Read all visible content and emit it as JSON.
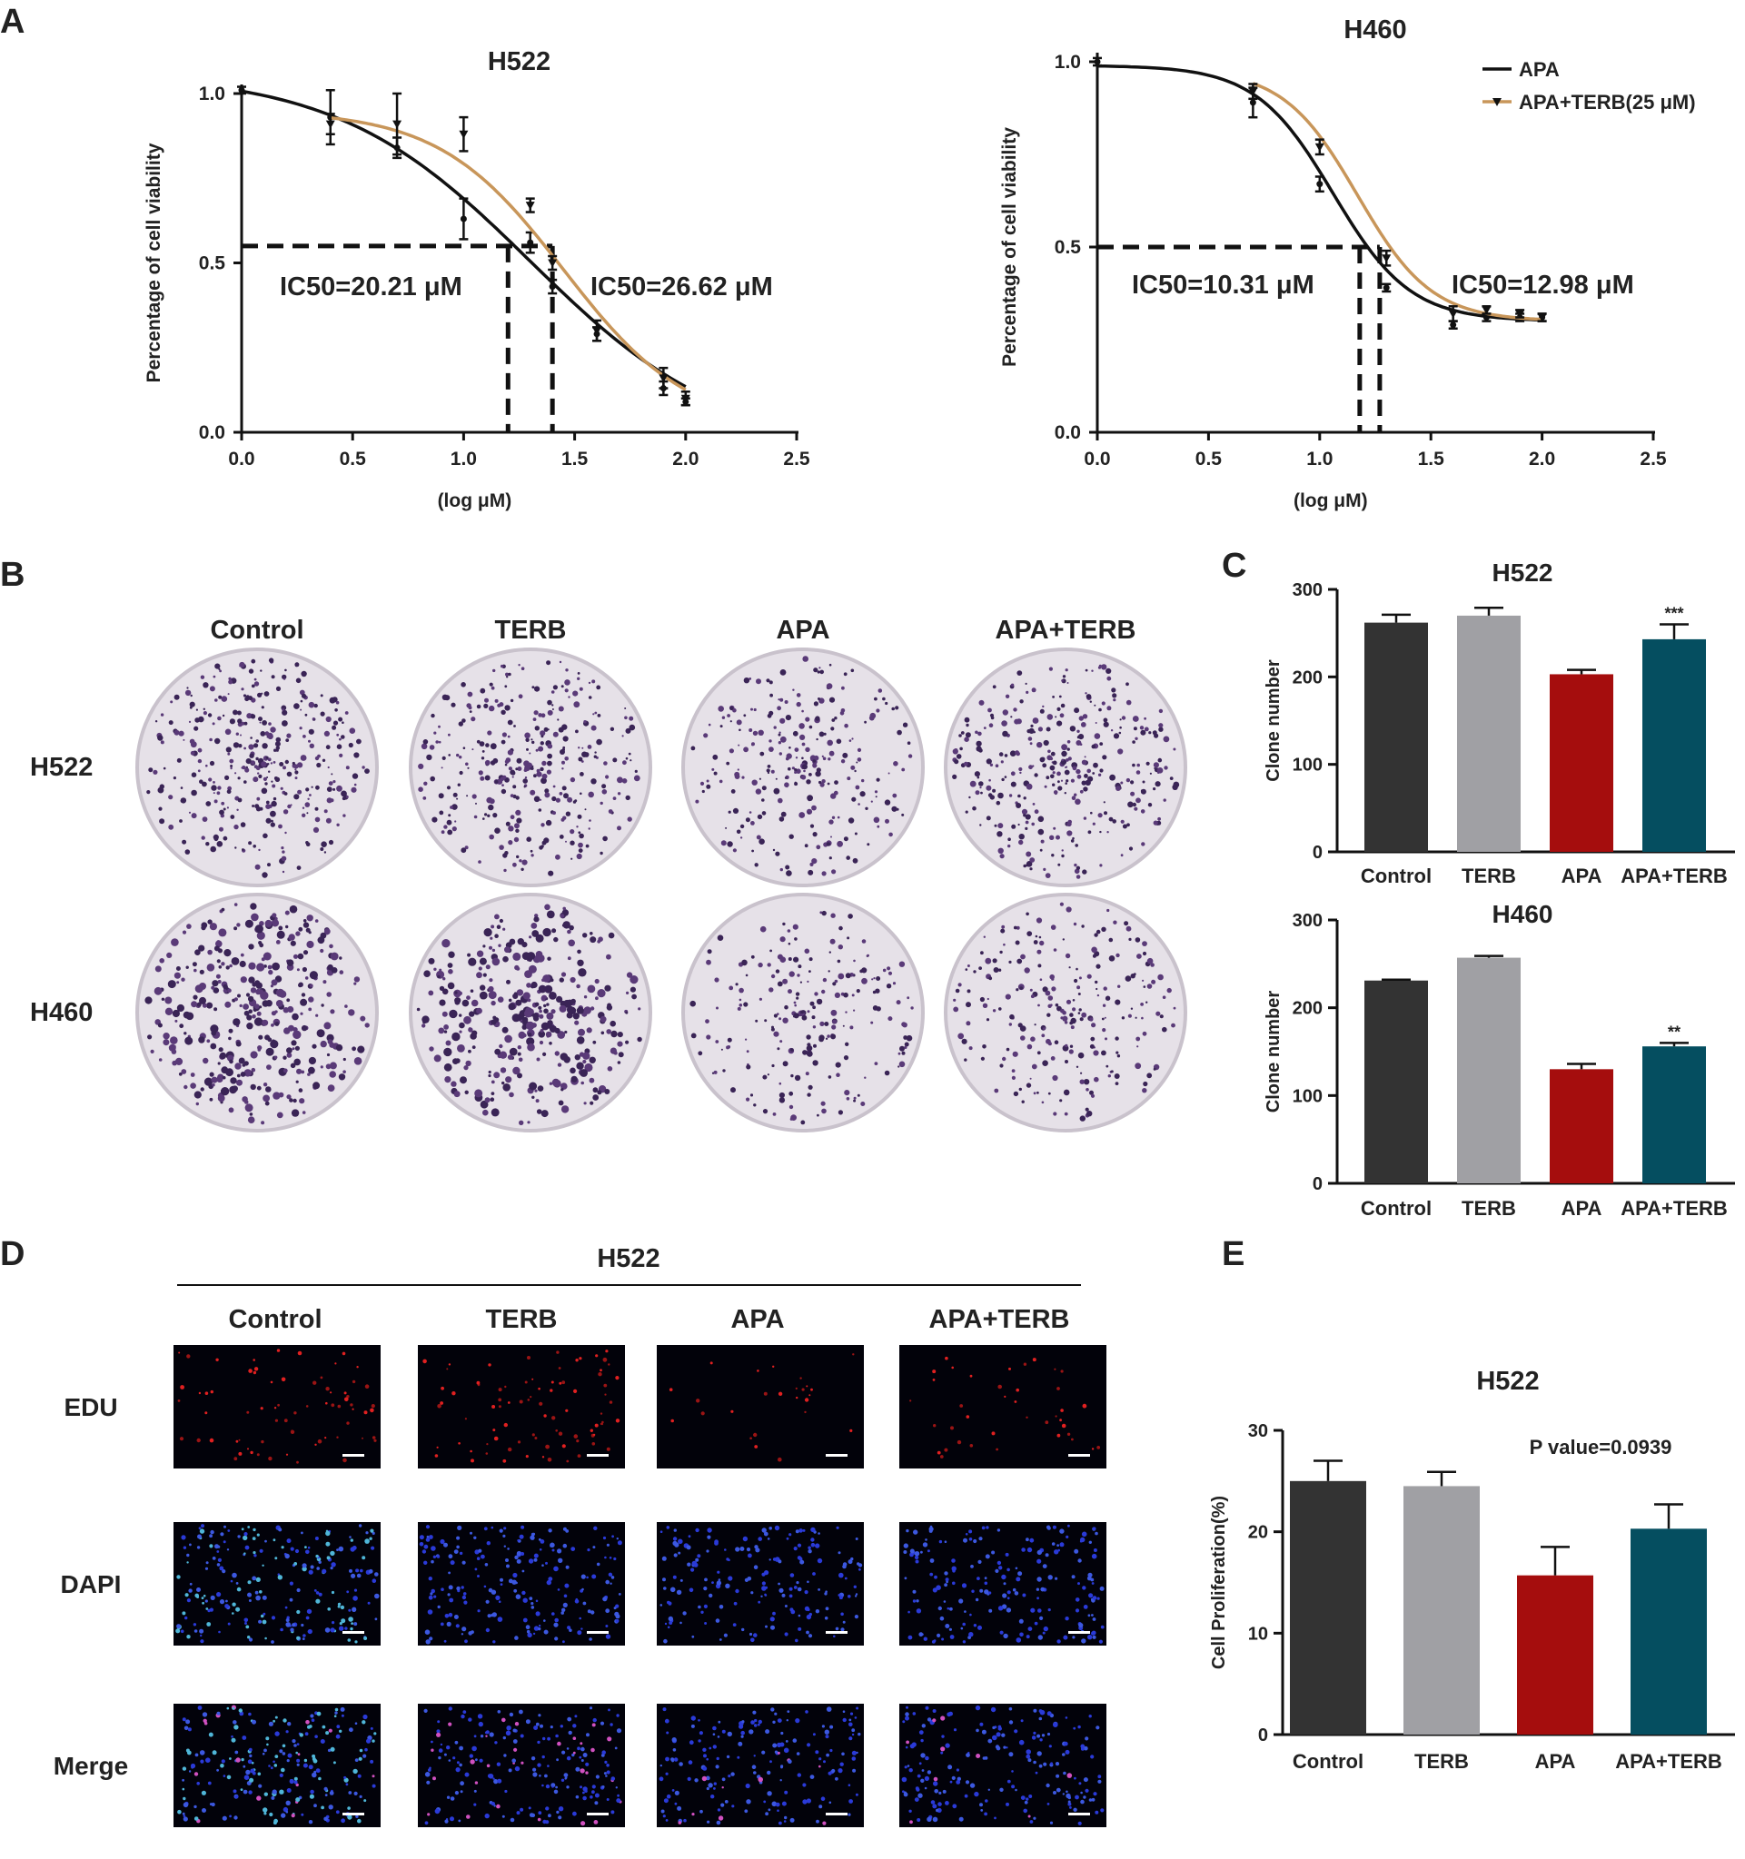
{
  "panel_letters": {
    "a": "A",
    "b": "B",
    "c": "C",
    "d": "D",
    "e": "E"
  },
  "colors": {
    "black": "#111111",
    "orange": "#c8965a",
    "control": "#333333",
    "terb": "#a0a0a4",
    "apa": "#a50d0d",
    "apa_terb": "#054e60"
  },
  "panel_b": {
    "columns": [
      "Control",
      "TERB",
      "APA",
      "APA+TERB"
    ],
    "rows": [
      "H522",
      "H460"
    ],
    "density": [
      [
        1.0,
        0.85,
        0.55,
        0.9
      ],
      [
        1.0,
        1.0,
        0.35,
        0.45
      ]
    ]
  },
  "panel_d": {
    "title": "H522",
    "columns": [
      "Control",
      "TERB",
      "APA",
      "APA+TERB"
    ],
    "rows": [
      {
        "label": "EDU",
        "color": "#d42a2a"
      },
      {
        "label": "DAPI",
        "color": "#2a3aa8"
      },
      {
        "label": "Merge",
        "color": "#333333"
      }
    ]
  },
  "chart_data": [
    {
      "type": "line",
      "title": "H522",
      "xlabel": "(log μM)",
      "ylabel": "Percentage of cell viability",
      "xlim": [
        0,
        2.5
      ],
      "ylim": [
        0,
        1.0
      ],
      "xticks": [
        "0.0",
        "0.5",
        "1.0",
        "1.5",
        "2.0",
        "2.5"
      ],
      "yticks": [
        "0.0",
        "0.5",
        "1.0"
      ],
      "ic50_level": 0.55,
      "series": [
        {
          "x": [
            0,
            0.4,
            0.7,
            1.0,
            1.3,
            1.4,
            1.6,
            1.9,
            2.0
          ],
          "y": [
            1.01,
            0.93,
            0.84,
            0.63,
            0.56,
            0.43,
            0.29,
            0.13,
            0.09
          ],
          "err": [
            0.01,
            0.08,
            0.03,
            0.06,
            0.03,
            0.02,
            0.02,
            0.02,
            0.01
          ],
          "fit": {
            "top": 1.06,
            "bottom": -0.05,
            "logic50": 1.3,
            "hill": 1.0
          },
          "ic50_x": 1.2,
          "ic50_label": "IC50=20.21 μM",
          "marker": "circle"
        },
        {
          "x": [
            0.4,
            0.7,
            1.0,
            1.3,
            1.4,
            1.6,
            1.9,
            2.0
          ],
          "y": [
            0.91,
            0.91,
            0.88,
            0.67,
            0.5,
            0.3,
            0.16,
            0.1
          ],
          "err": [
            0.03,
            0.09,
            0.05,
            0.02,
            0.02,
            0.03,
            0.03,
            0.02
          ],
          "fit": {
            "top": 0.95,
            "bottom": 0.01,
            "logic50": 1.45,
            "hill": 1.55
          },
          "ic50_x": 1.4,
          "ic50_label": "IC50=26.62 μM",
          "marker": "triangle"
        }
      ]
    },
    {
      "type": "line",
      "title": "H460",
      "xlabel": "(log μM)",
      "ylabel": "Percentage of cell viability",
      "xlim": [
        0,
        2.5
      ],
      "ylim": [
        0,
        1.0
      ],
      "xticks": [
        "0.0",
        "0.5",
        "1.0",
        "1.5",
        "2.0",
        "2.5"
      ],
      "yticks": [
        "0.0",
        "0.5",
        "1.0"
      ],
      "ic50_level": 0.5,
      "legend": "top-right",
      "series": [
        {
          "name": "APA",
          "x": [
            0,
            0.7,
            1.0,
            1.3,
            1.6,
            1.75,
            1.9,
            2.0
          ],
          "y": [
            1.0,
            0.89,
            0.67,
            0.39,
            0.29,
            0.31,
            0.31,
            0.31
          ],
          "err": [
            0.01,
            0.04,
            0.02,
            0.01,
            0.01,
            0.01,
            0.01,
            0.01
          ],
          "fit": {
            "top": 0.99,
            "bottom": 0.3,
            "logic50": 1.06,
            "hill": 2.5
          },
          "ic50_x": 1.18,
          "ic50_label": "IC50=10.31 μM",
          "marker": "circle"
        },
        {
          "name": "APA+TERB(25 μM)",
          "x": [
            0.7,
            1.0,
            1.3,
            1.6,
            1.75,
            1.9,
            2.0
          ],
          "y": [
            0.92,
            0.77,
            0.47,
            0.32,
            0.33,
            0.32,
            0.31
          ],
          "err": [
            0.02,
            0.02,
            0.02,
            0.02,
            0.01,
            0.01,
            0.01
          ],
          "fit": {
            "top": 0.98,
            "bottom": 0.3,
            "logic50": 1.17,
            "hill": 2.6
          },
          "ic50_x": 1.27,
          "ic50_label": "IC50=12.98 μM",
          "marker": "triangle"
        }
      ]
    },
    {
      "type": "bar",
      "title": "H522",
      "ylabel": "Clone number",
      "ylim": [
        0,
        300
      ],
      "yticks": [
        "0",
        "100",
        "200",
        "300"
      ],
      "categories": [
        "Control",
        "TERB",
        "APA",
        "APA+TERB"
      ],
      "values": [
        262,
        270,
        203,
        243
      ],
      "err": [
        9,
        9,
        5,
        17
      ],
      "sig": [
        "",
        "",
        "",
        "***"
      ]
    },
    {
      "type": "bar",
      "title": "H460",
      "ylabel": "Clone number",
      "ylim": [
        0,
        300
      ],
      "yticks": [
        "0",
        "100",
        "200",
        "300"
      ],
      "categories": [
        "Control",
        "TERB",
        "APA",
        "APA+TERB"
      ],
      "values": [
        231,
        257,
        130,
        156
      ],
      "err": [
        1,
        2,
        6,
        4
      ],
      "sig": [
        "",
        "",
        "",
        "**"
      ]
    },
    {
      "type": "bar",
      "title": "H522",
      "ylabel": "Cell Proliferation(%)",
      "ylim": [
        0,
        30
      ],
      "yticks": [
        "0",
        "10",
        "20",
        "30"
      ],
      "categories": [
        "Control",
        "TERB",
        "APA",
        "APA+TERB"
      ],
      "values": [
        25,
        24.5,
        15.7,
        20.3
      ],
      "err": [
        2.0,
        1.4,
        2.8,
        2.4
      ],
      "annotation": "P value=0.0939"
    }
  ]
}
